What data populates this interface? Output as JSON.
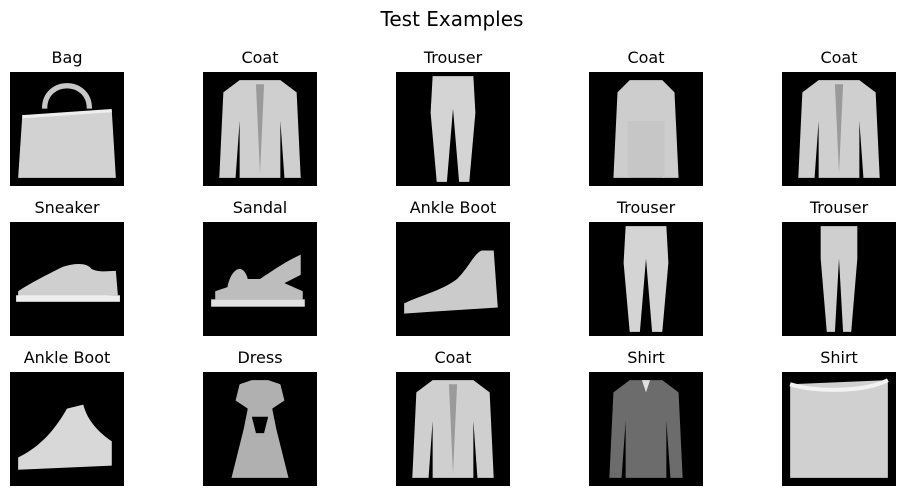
{
  "title": "Test Examples",
  "examples": [
    {
      "label": "Bag",
      "kind": "bag"
    },
    {
      "label": "Coat",
      "kind": "coat"
    },
    {
      "label": "Trouser",
      "kind": "trouser"
    },
    {
      "label": "Coat",
      "kind": "coat-long"
    },
    {
      "label": "Coat",
      "kind": "coat"
    },
    {
      "label": "Sneaker",
      "kind": "sneaker"
    },
    {
      "label": "Sandal",
      "kind": "sandal"
    },
    {
      "label": "Ankle Boot",
      "kind": "boot"
    },
    {
      "label": "Trouser",
      "kind": "trouser"
    },
    {
      "label": "Trouser",
      "kind": "trouser-narrow"
    },
    {
      "label": "Ankle Boot",
      "kind": "boot-low"
    },
    {
      "label": "Dress",
      "kind": "dress"
    },
    {
      "label": "Coat",
      "kind": "coat"
    },
    {
      "label": "Shirt",
      "kind": "shirt-dark"
    },
    {
      "label": "Shirt",
      "kind": "shirt-wide"
    }
  ]
}
